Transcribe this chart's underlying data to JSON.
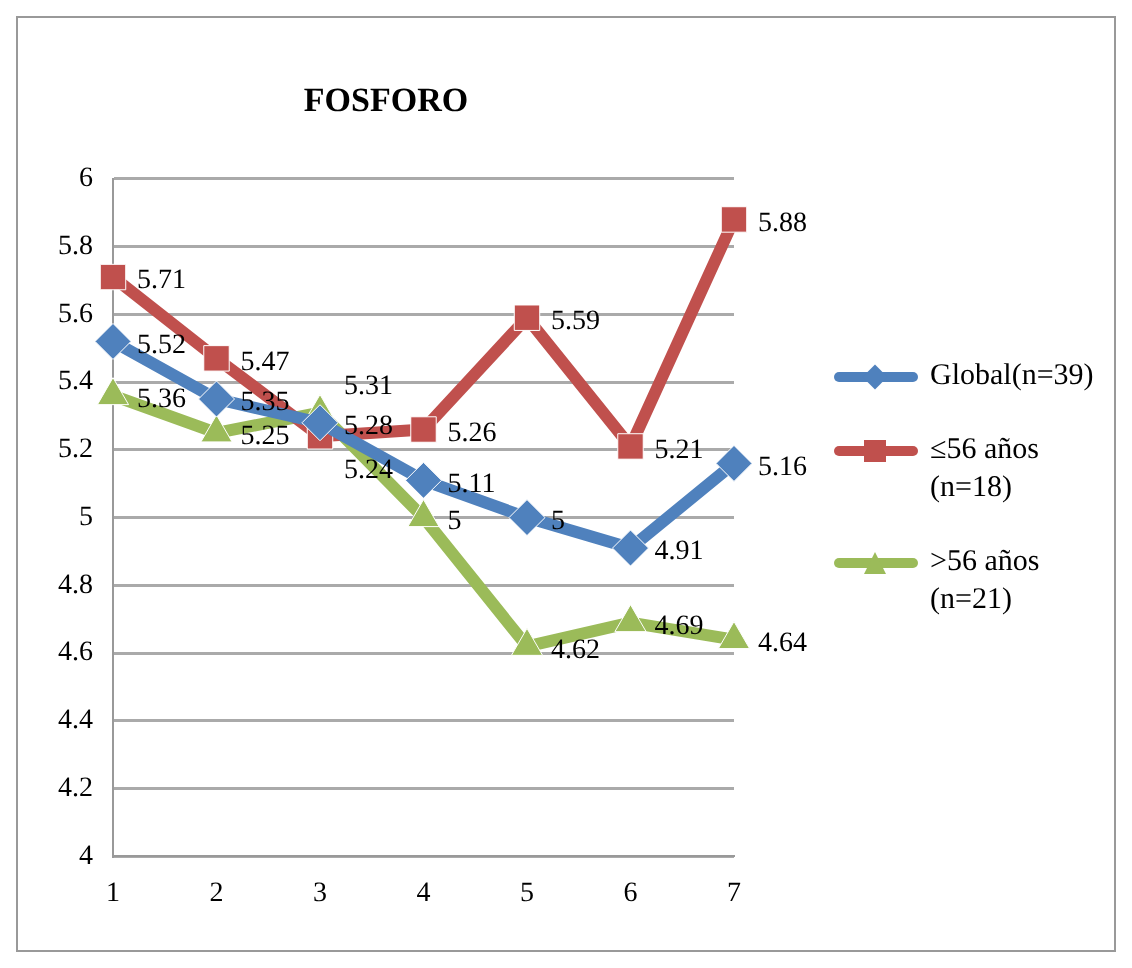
{
  "chart_data": {
    "type": "line",
    "title": "FOSFORO",
    "categories": [
      "1",
      "2",
      "3",
      "4",
      "5",
      "6",
      "7"
    ],
    "series": [
      {
        "name": "Global(n=39)",
        "color": "#4f81bd",
        "marker": "diamond",
        "values": [
          5.52,
          5.35,
          5.28,
          5.11,
          5,
          4.91,
          5.16
        ]
      },
      {
        "name": "≤56 años (n=18)",
        "color": "#c0504d",
        "marker": "square",
        "values": [
          5.71,
          5.47,
          5.24,
          5.26,
          5.59,
          5.21,
          5.88
        ]
      },
      {
        "name": ">56 años (n=21)",
        "color": "#9bbb59",
        "marker": "triangle",
        "values": [
          5.36,
          5.25,
          5.31,
          5,
          4.62,
          4.69,
          4.64
        ]
      }
    ],
    "ylim": [
      4,
      6
    ],
    "yticks": [
      4,
      4.2,
      4.4,
      4.6,
      4.8,
      5,
      5.2,
      5.4,
      5.6,
      5.8,
      6
    ],
    "grid": "y",
    "legend": "right",
    "data_labels": true
  }
}
